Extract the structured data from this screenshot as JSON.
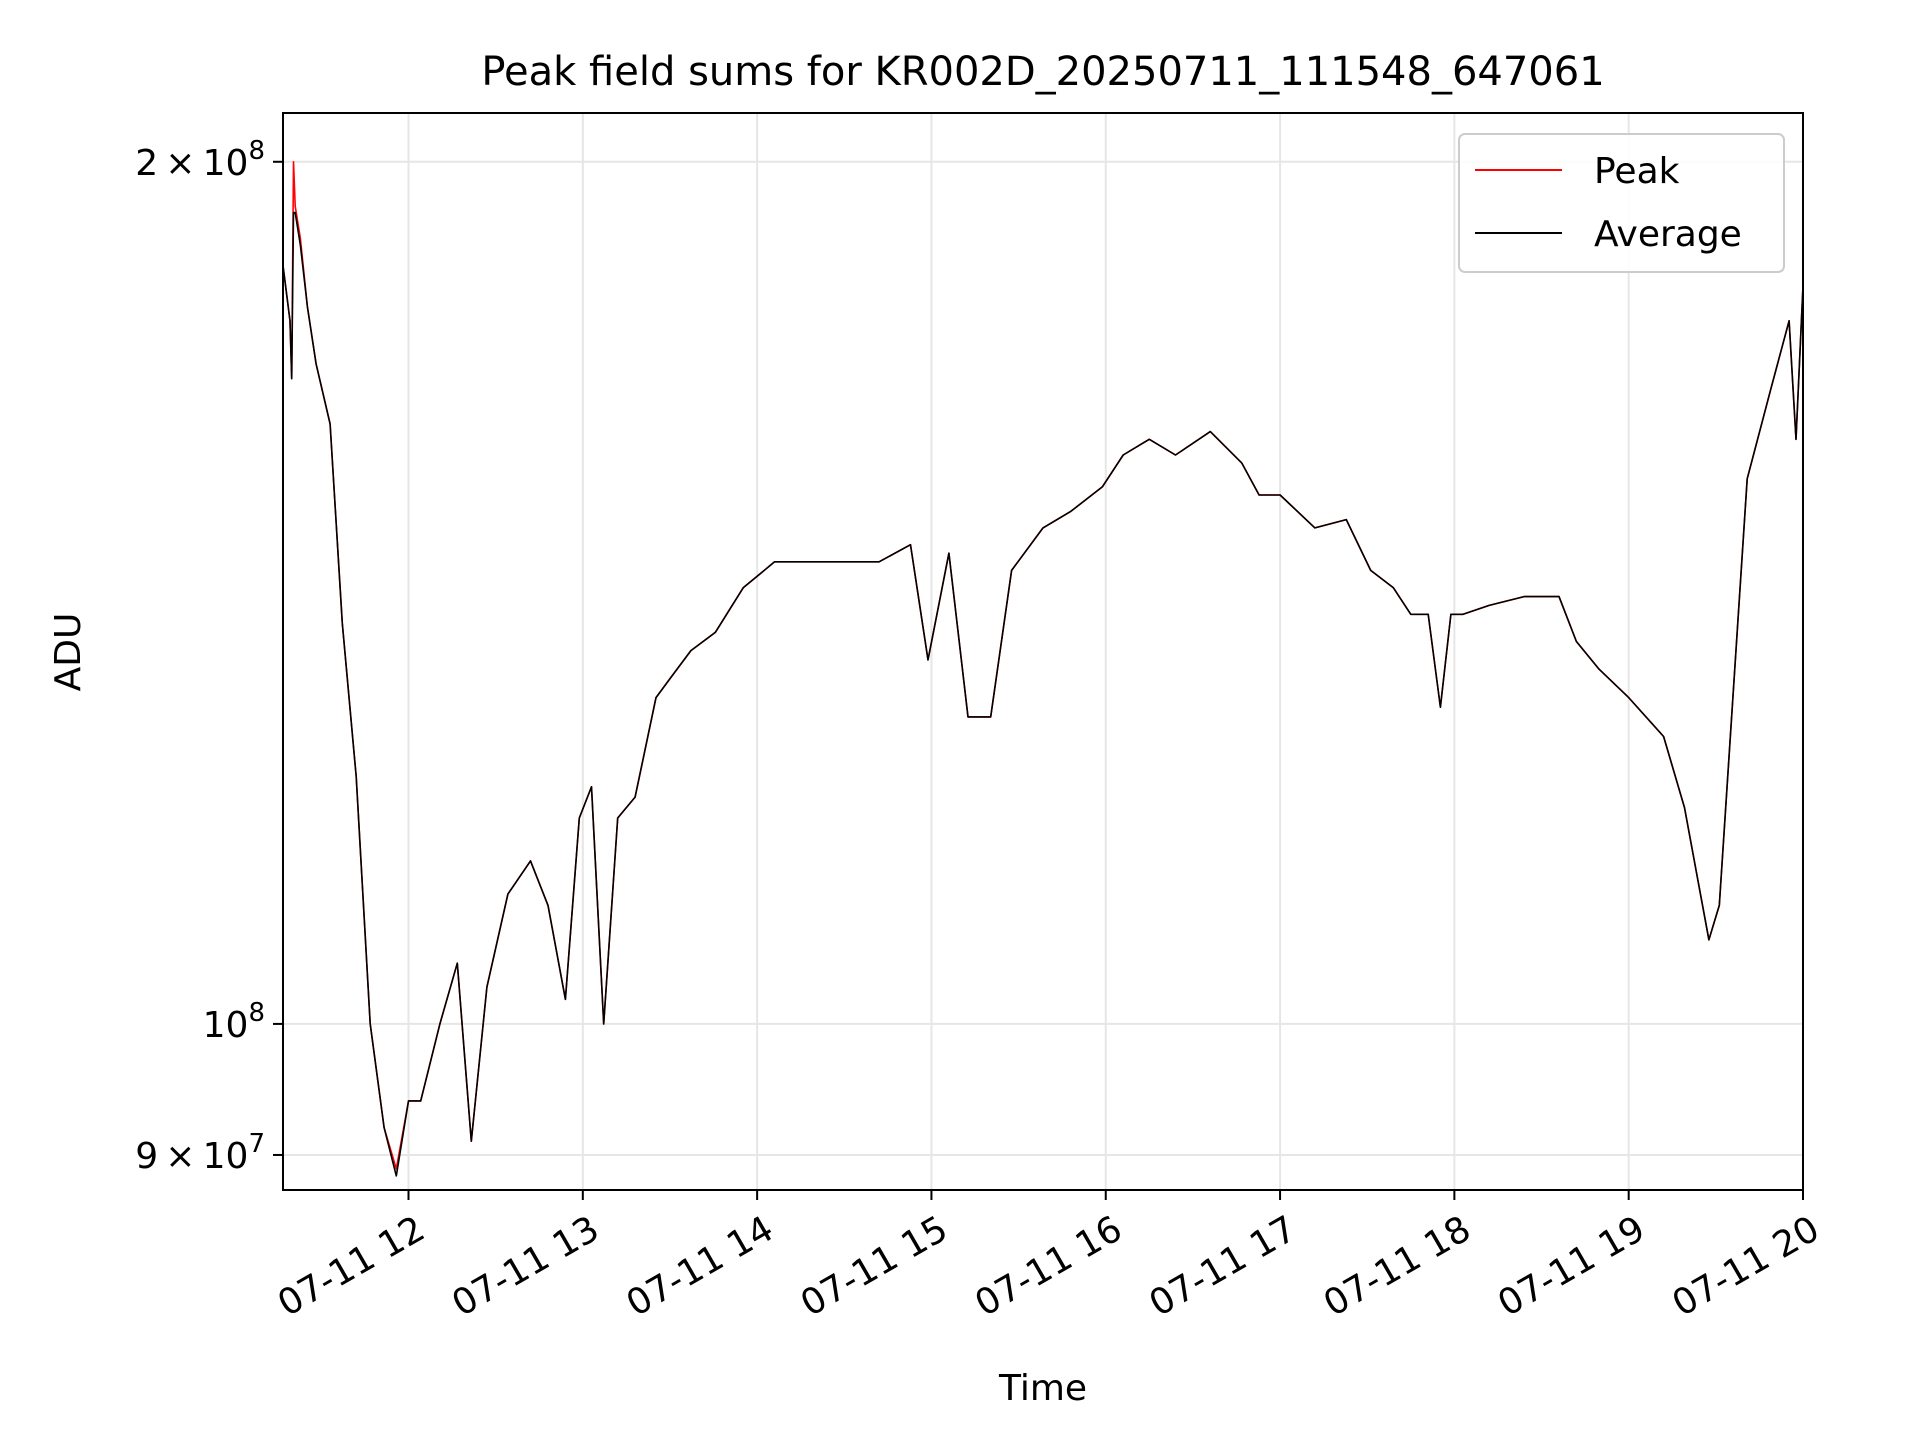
{
  "chart_data": {
    "type": "line",
    "title": "Peak field sums for KR002D_20250711_111548_647061",
    "xlabel": "Time",
    "ylabel": "ADU",
    "x_unit": "hour on 07-11",
    "xlim": [
      11.28,
      20.0
    ],
    "ylim": [
      87500000,
      208000000
    ],
    "yscale": "log",
    "grid": true,
    "legend_position": "upper right",
    "x_ticks": [
      {
        "value": 12,
        "label": "07-11 12"
      },
      {
        "value": 13,
        "label": "07-11 13"
      },
      {
        "value": 14,
        "label": "07-11 14"
      },
      {
        "value": 15,
        "label": "07-11 15"
      },
      {
        "value": 16,
        "label": "07-11 16"
      },
      {
        "value": 17,
        "label": "07-11 17"
      },
      {
        "value": 18,
        "label": "07-11 18"
      },
      {
        "value": 19,
        "label": "07-11 19"
      },
      {
        "value": 20,
        "label": "07-11 20"
      }
    ],
    "y_ticks": [
      {
        "value": 90000000,
        "mantissa": "9",
        "exponent": "7"
      },
      {
        "value": 100000000,
        "mantissa": "",
        "exponent": "8"
      },
      {
        "value": 200000000,
        "mantissa": "2",
        "exponent": "8"
      }
    ],
    "series": [
      {
        "name": "Peak",
        "color": "#ff0000",
        "x": [
          11.28,
          11.32,
          11.33,
          11.34,
          11.35,
          11.38,
          11.42,
          11.47,
          11.55,
          11.62,
          11.7,
          11.78,
          11.86,
          11.93,
          12.0,
          12.07,
          12.18,
          12.28,
          12.36,
          12.45,
          12.57,
          12.7,
          12.8,
          12.9,
          12.98,
          13.05,
          13.12,
          13.2,
          13.3,
          13.42,
          13.5,
          13.62,
          13.76,
          13.92,
          14.1,
          14.4,
          14.7,
          14.88,
          14.98,
          15.1,
          15.21,
          15.34,
          15.46,
          15.64,
          15.8,
          15.98,
          16.1,
          16.25,
          16.4,
          16.6,
          16.78,
          16.88,
          17.0,
          17.2,
          17.38,
          17.52,
          17.65,
          17.75,
          17.85,
          17.92,
          17.98,
          18.05,
          18.2,
          18.4,
          18.6,
          18.7,
          18.83,
          19.0,
          19.2,
          19.32,
          19.4,
          19.46,
          19.52,
          19.68,
          19.82,
          19.92,
          19.96,
          20.0
        ],
        "y": [
          184000000,
          176000000,
          168000000,
          200000000,
          193000000,
          188000000,
          178000000,
          170000000,
          162000000,
          138000000,
          122000000,
          100000000,
          92000000,
          89000000,
          94000000,
          94000000,
          100000000,
          105000000,
          91000000,
          103000000,
          111000000,
          114000000,
          110000000,
          102000000,
          118000000,
          121000000,
          100000000,
          118000000,
          120000000,
          130000000,
          132000000,
          135000000,
          137000000,
          142000000,
          145000000,
          145000000,
          145000000,
          147000000,
          134000000,
          146000000,
          128000000,
          128000000,
          144000000,
          149000000,
          151000000,
          154000000,
          158000000,
          160000000,
          158000000,
          161000000,
          157000000,
          153000000,
          153000000,
          149000000,
          150000000,
          144000000,
          142000000,
          139000000,
          139000000,
          129000000,
          139000000,
          139000000,
          140000000,
          141000000,
          141000000,
          136000000,
          133000000,
          130000000,
          126000000,
          119000000,
          112000000,
          107000000,
          110000000,
          155000000,
          167000000,
          176000000,
          160000000,
          181000000
        ]
      },
      {
        "name": "Average",
        "color": "#000000",
        "x": [
          11.28,
          11.32,
          11.33,
          11.34,
          11.35,
          11.38,
          11.42,
          11.47,
          11.55,
          11.62,
          11.7,
          11.78,
          11.86,
          11.93,
          12.0,
          12.07,
          12.18,
          12.28,
          12.36,
          12.45,
          12.57,
          12.7,
          12.8,
          12.9,
          12.98,
          13.05,
          13.12,
          13.2,
          13.3,
          13.42,
          13.5,
          13.62,
          13.76,
          13.92,
          14.1,
          14.4,
          14.7,
          14.88,
          14.98,
          15.1,
          15.21,
          15.34,
          15.46,
          15.64,
          15.8,
          15.98,
          16.1,
          16.25,
          16.4,
          16.6,
          16.78,
          16.88,
          17.0,
          17.2,
          17.38,
          17.52,
          17.65,
          17.75,
          17.85,
          17.92,
          17.98,
          18.05,
          18.2,
          18.4,
          18.6,
          18.7,
          18.83,
          19.0,
          19.2,
          19.32,
          19.4,
          19.46,
          19.52,
          19.68,
          19.82,
          19.92,
          19.96,
          20.0
        ],
        "y": [
          184000000,
          176000000,
          168000000,
          192000000,
          192000000,
          187000000,
          178000000,
          170000000,
          162000000,
          138000000,
          122000000,
          100000000,
          92000000,
          88500000,
          94000000,
          94000000,
          100000000,
          105000000,
          91000000,
          103000000,
          111000000,
          114000000,
          110000000,
          102000000,
          118000000,
          121000000,
          100000000,
          118000000,
          120000000,
          130000000,
          132000000,
          135000000,
          137000000,
          142000000,
          145000000,
          145000000,
          145000000,
          147000000,
          134000000,
          146000000,
          128000000,
          128000000,
          144000000,
          149000000,
          151000000,
          154000000,
          158000000,
          160000000,
          158000000,
          161000000,
          157000000,
          153000000,
          153000000,
          149000000,
          150000000,
          144000000,
          142000000,
          139000000,
          139000000,
          129000000,
          139000000,
          139000000,
          140000000,
          141000000,
          141000000,
          136000000,
          133000000,
          130000000,
          126000000,
          119000000,
          112000000,
          107000000,
          110000000,
          155000000,
          167000000,
          176000000,
          160000000,
          181000000
        ]
      }
    ]
  }
}
